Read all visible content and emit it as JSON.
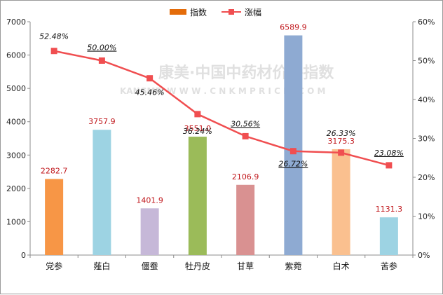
{
  "chart_data": {
    "type": "bar",
    "categories": [
      "党参",
      "薤白",
      "僵蚕",
      "牡丹皮",
      "甘草",
      "紫菀",
      "白术",
      "苦参"
    ],
    "series": [
      {
        "name": "指数",
        "type": "bar",
        "axis": "left",
        "values": [
          2282.7,
          3757.9,
          1401.9,
          3551.0,
          2106.9,
          6589.9,
          3175.3,
          1131.3
        ],
        "labels": [
          "2282.7",
          "3757.9",
          "1401.9",
          "3551.0",
          "2106.9",
          "6589.9",
          "3175.3",
          "1131.3"
        ],
        "colors": [
          "#f79646",
          "#9dd3e3",
          "#c6b8d8",
          "#9bbb59",
          "#d99191",
          "#8eaad2",
          "#fac08f",
          "#9dd3e3"
        ],
        "legend_color": "#e46c0a"
      },
      {
        "name": "涨幅",
        "type": "line",
        "axis": "right",
        "values": [
          52.48,
          50.0,
          45.46,
          36.24,
          30.56,
          26.72,
          26.33,
          23.08
        ],
        "labels": [
          "52.48%",
          "50.00%",
          "45.46%",
          "36.24%",
          "30.56%",
          "26.72%",
          "26.33%",
          "23.08%"
        ],
        "color": "#f04e50"
      }
    ],
    "y_left": {
      "range": [
        0,
        7000
      ],
      "ticks": [
        "0",
        "1000",
        "2000",
        "3000",
        "4000",
        "5000",
        "6000",
        "7000"
      ]
    },
    "y_right": {
      "range": [
        0,
        60
      ],
      "ticks": [
        "0%",
        "10%",
        "20%",
        "30%",
        "40%",
        "50%",
        "60%"
      ]
    },
    "legend_position": "top-center",
    "grid": false
  },
  "watermark": {
    "line1": "康美·中国中药材价格指数",
    "line2": "KANGMEI  W W W . C N K M P R I C E . C O M"
  }
}
